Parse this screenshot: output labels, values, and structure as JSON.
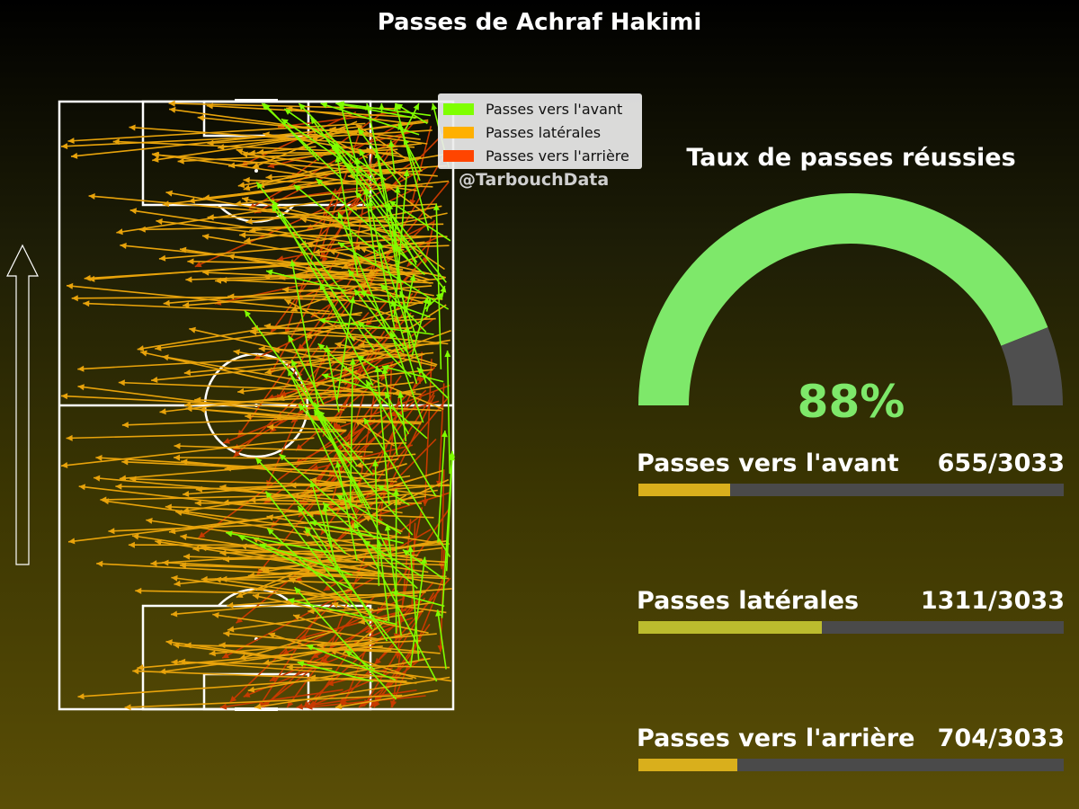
{
  "title": "Passes de Achraf Hakimi",
  "watermark": "@TarbouchData",
  "legend": [
    {
      "label": "Passes vers l'avant",
      "color": "#7fff00"
    },
    {
      "label": "Passes latérales",
      "color": "#ffb000"
    },
    {
      "label": "Passes vers l'arrière",
      "color": "#ff4500"
    }
  ],
  "success_rate": {
    "title": "Taux de passes réussies",
    "percent": 88,
    "label": "88%",
    "success_color": "#7ee86a",
    "fail_color": "#4f4f4f"
  },
  "stats": [
    {
      "label": "Passes vers l'avant",
      "value": 655,
      "total": 3033,
      "display": "655/3033",
      "color": "#d9af1c"
    },
    {
      "label": "Passes latérales",
      "value": 1311,
      "total": 3033,
      "display": "1311/3033",
      "color": "#bcbc2e"
    },
    {
      "label": "Passes vers l'arrière",
      "value": 704,
      "total": 3033,
      "display": "704/3033",
      "color": "#d9af1c"
    }
  ],
  "chart_data": {
    "type": "pass-map",
    "categories": [
      "Passes vers l'avant",
      "Passes latérales",
      "Passes vers l'arrière"
    ],
    "counts": [
      655,
      1311,
      704
    ],
    "total": 3033,
    "success_rate_percent": 88,
    "pass_colors": {
      "forward": "#7fff00",
      "lateral": "#e8a30b",
      "backward": "#c83a00"
    }
  }
}
